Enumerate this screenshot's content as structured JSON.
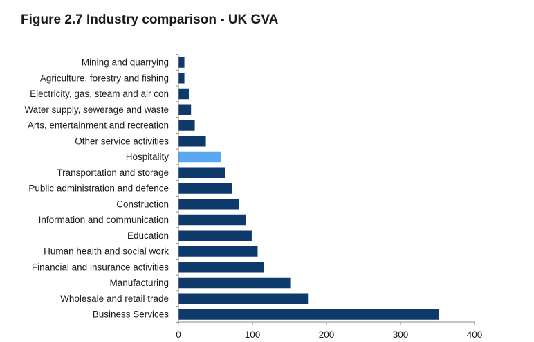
{
  "figure": {
    "title": "Figure 2.7  Industry comparison - UK GVA"
  },
  "chart_data": {
    "type": "bar",
    "orientation": "horizontal",
    "title": "Figure 2.7  Industry comparison - UK GVA",
    "xlabel": "",
    "ylabel": "",
    "categories": [
      "Mining and quarrying",
      "Agriculture, forestry and fishing",
      "Electricity, gas, steam and air con",
      "Water supply, sewerage and waste",
      "Arts, entertainment and recreation",
      "Other service activities",
      "Hospitality",
      "Transportation and storage",
      "Public administration and defence",
      "Construction",
      "Information and communication",
      "Education",
      "Human health and social work",
      "Financial and insurance activities",
      "Manufacturing",
      "Wholesale and retail trade",
      "Business Services"
    ],
    "values": [
      8,
      8,
      14,
      17,
      22,
      37,
      57,
      63,
      72,
      82,
      91,
      99,
      107,
      115,
      151,
      175,
      352
    ],
    "highlight": "Hospitality",
    "xlim": [
      0,
      400
    ],
    "xticks": [
      0,
      100,
      200,
      300,
      400
    ],
    "grid": false,
    "legend": "none",
    "colors": {
      "bar": "#0e3a6b",
      "highlight": "#5aa7f2",
      "axis": "#8a8a8a"
    }
  }
}
